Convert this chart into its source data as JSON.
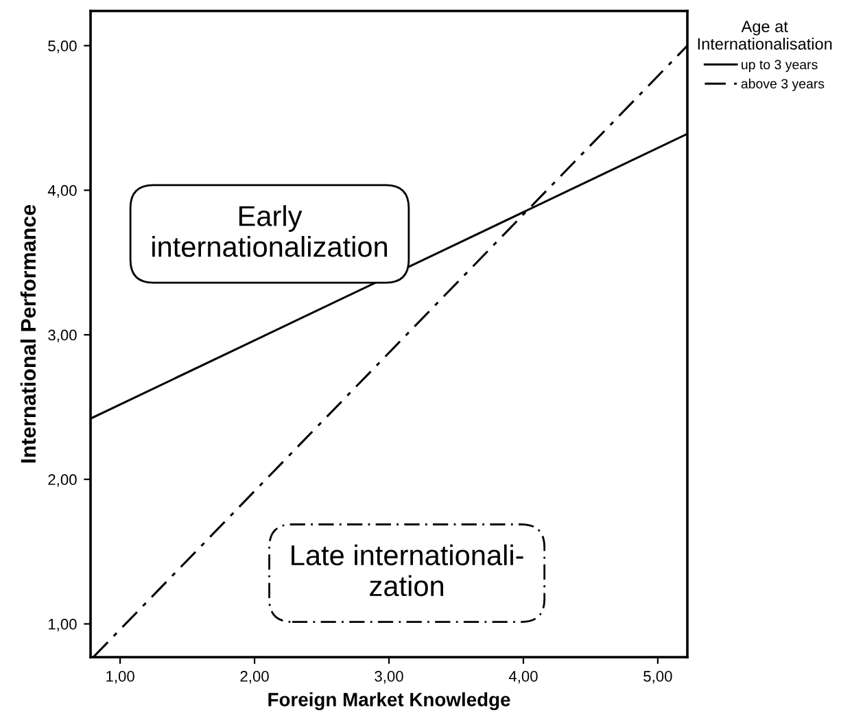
{
  "chart_data": {
    "type": "line",
    "xlabel": "Foreign Market Knowledge",
    "ylabel": "International Performance",
    "legend_title": "Age at\nInternationalisation",
    "legend": "top right",
    "series": [
      {
        "name": "up to 3 years",
        "color": "#000000",
        "line_style": "solid",
        "x": [
          0.78,
          5.22
        ],
        "values": [
          2.42,
          4.39
        ]
      },
      {
        "name": "above 3 years",
        "color": "#000000",
        "line_style": "dashdot",
        "x": [
          0.8,
          5.22
        ],
        "values": [
          0.77,
          5.0
        ]
      }
    ],
    "xlim": [
      0.78,
      5.22
    ],
    "ylim": [
      0.77,
      5.24
    ],
    "xticks": [
      {
        "value": 1,
        "label": "1,00"
      },
      {
        "value": 2,
        "label": "2,00"
      },
      {
        "value": 3,
        "label": "3,00"
      },
      {
        "value": 4,
        "label": "4,00"
      },
      {
        "value": 5,
        "label": "5,00"
      }
    ],
    "yticks": [
      {
        "value": 1,
        "label": "1,00"
      },
      {
        "value": 2,
        "label": "2,00"
      },
      {
        "value": 3,
        "label": "3,00"
      },
      {
        "value": 4,
        "label": "4,00"
      },
      {
        "value": 5,
        "label": "5,00"
      }
    ],
    "grid": false,
    "annotations": [
      "Early\ninternationalization",
      "Late internationali-\nzation"
    ]
  }
}
